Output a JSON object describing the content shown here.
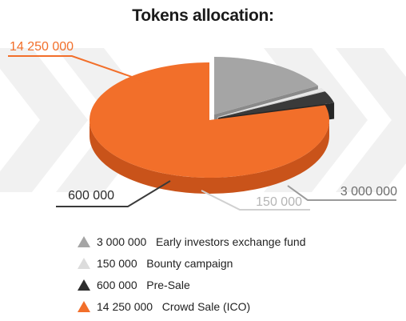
{
  "title": "Tokens allocation:",
  "colors": {
    "orange": "#f26f2a",
    "orange_side": "#c9531a",
    "gray": "#a5a5a5",
    "gray_side": "#8a8a8a",
    "light": "#e7e7e7",
    "light_side": "#c9c9c9",
    "dark": "#3a3a3a",
    "dark_side": "#262626"
  },
  "chart_data": {
    "type": "pie",
    "title": "Tokens allocation:",
    "slices": [
      {
        "label": "Early investors exchange fund",
        "value": 3000000,
        "display": "3 000 000",
        "color": "#a5a5a5",
        "exploded": true,
        "legend": "3 000 000   Early investors exchange fund"
      },
      {
        "label": "Bounty campaign",
        "value": 150000,
        "display": "150 000",
        "color": "#e7e7e7",
        "exploded": true,
        "legend": "150 000   Bounty campaign"
      },
      {
        "label": "Pre-Sale",
        "value": 600000,
        "display": "600 000",
        "color": "#3a3a3a",
        "exploded": true,
        "legend": "600 000   Pre-Sale"
      },
      {
        "label": "Crowd Sale (ICO)",
        "value": 14250000,
        "display": "14 250 000",
        "color": "#f26f2a",
        "exploded": false,
        "legend": "14 250 000   Crowd Sale (ICO)"
      }
    ],
    "legend_position": "bottom-left"
  }
}
